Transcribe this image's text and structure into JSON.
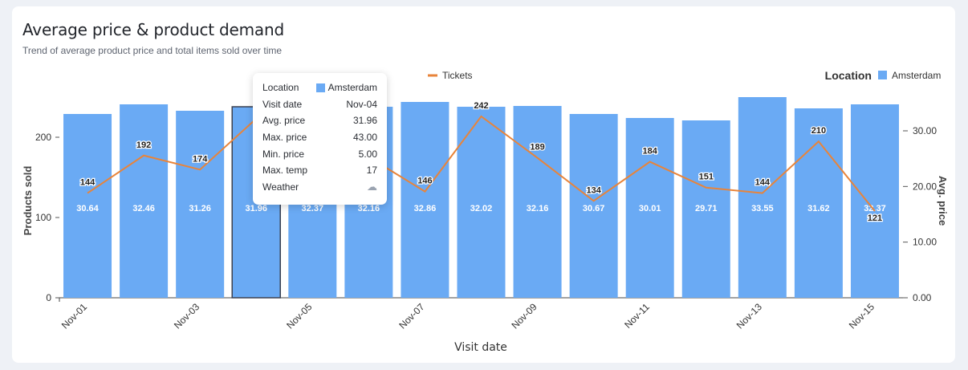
{
  "title": "Average price & product demand",
  "subtitle": "Trend of average product price and total items sold over time",
  "legend": {
    "line_label": "Tickets",
    "location_title": "Location",
    "location_item": "Amsterdam"
  },
  "colors": {
    "bar": "#6aaaf4",
    "line": "#e8843a",
    "highlight_border": "#3b4150"
  },
  "chart_data": {
    "type": "bar",
    "categories": [
      "Nov-01",
      "Nov-02",
      "Nov-03",
      "Nov-04",
      "Nov-05",
      "Nov-06",
      "Nov-07",
      "Nov-08",
      "Nov-09",
      "Nov-10",
      "Nov-11",
      "Nov-12",
      "Nov-13",
      "Nov-14",
      "Nov-15"
    ],
    "xticks_shown": [
      "Nov-01",
      "Nov-03",
      "Nov-05",
      "Nov-07",
      "Nov-09",
      "Nov-11",
      "Nov-13",
      "Nov-15"
    ],
    "series": [
      {
        "name": "Amsterdam",
        "type": "bar",
        "axis": "left",
        "values": [
          229,
          241,
          233,
          238,
          246,
          238,
          244,
          238,
          239,
          229,
          224,
          221,
          250,
          236,
          241
        ],
        "labels": [
          "30.64",
          "32.46",
          "31.26",
          "31.96",
          "32.37",
          "32.16",
          "32.86",
          "32.02",
          "32.16",
          "30.67",
          "30.01",
          "29.71",
          "33.55",
          "31.62",
          "32.37"
        ]
      },
      {
        "name": "Tickets",
        "type": "line",
        "axis": "right",
        "values": [
          144,
          192,
          174,
          239,
          211,
          190,
          146,
          242,
          189,
          134,
          184,
          151,
          144,
          210,
          121
        ],
        "labels": [
          "144",
          "192",
          "174",
          "",
          "",
          "",
          "146",
          "242",
          "189",
          "134",
          "184",
          "151",
          "144",
          "210",
          "121"
        ]
      }
    ],
    "xlabel": "Visit date",
    "ylabel": "Products sold",
    "y2label": "Avg. price",
    "ylim": [
      0,
      270
    ],
    "yticks": [
      0,
      100,
      200
    ],
    "y2ticks": [
      "0.00",
      "10.00",
      "20.00",
      "30.00"
    ],
    "highlighted": "Nov-04"
  },
  "tooltip": {
    "rows": [
      {
        "key": "Location",
        "value": "Amsterdam"
      },
      {
        "key": "Visit date",
        "value": "Nov-04"
      },
      {
        "key": "Avg. price",
        "value": "31.96"
      },
      {
        "key": "Max. price",
        "value": "43.00"
      },
      {
        "key": "Min. price",
        "value": "5.00"
      },
      {
        "key": "Max. temp",
        "value": "17"
      },
      {
        "key": "Weather",
        "value": "☁"
      }
    ]
  }
}
